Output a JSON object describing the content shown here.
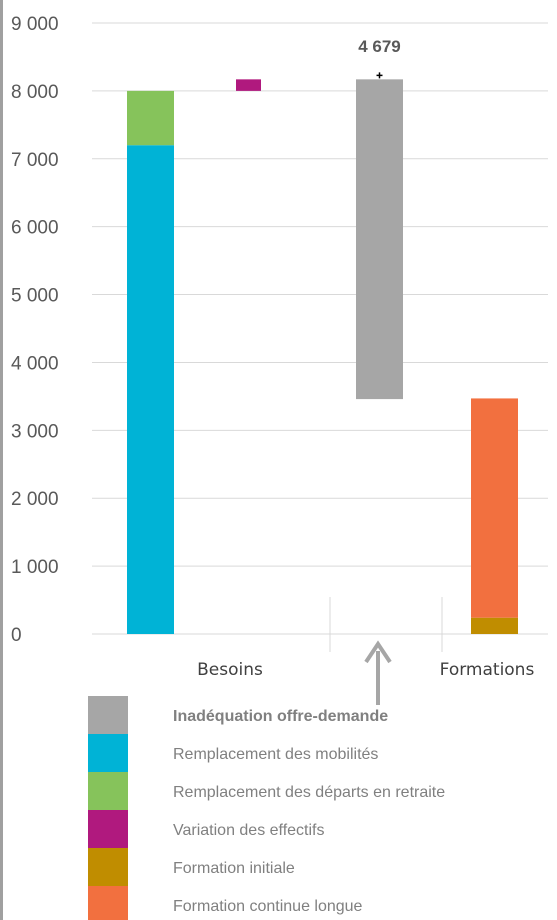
{
  "chart_data": {
    "type": "bar",
    "subtype": "waterfall",
    "categories": [
      "Besoins",
      "Formations"
    ],
    "y_ticks": [
      "0",
      "1 000",
      "2 000",
      "3 000",
      "4 000",
      "5 000",
      "6 000",
      "7 000",
      "8 000",
      "9 000"
    ],
    "ylim": [
      0,
      9000
    ],
    "grid": true,
    "bars": [
      {
        "series": "Remplacement des mobilités",
        "color": "#00B3D6",
        "start": 0,
        "end": 7200
      },
      {
        "series": "Remplacement des départs en retraite",
        "color": "#86C35B",
        "start": 7200,
        "end": 8000
      },
      {
        "series": "Variation des effectifs",
        "color": "#B0197E",
        "start": 8000,
        "end": 8170
      },
      {
        "series": "Inadéquation offre-demande",
        "color": "#A6A6A6",
        "start": 3460,
        "end": 8170
      },
      {
        "series": "Formation initiale",
        "color": "#C08D00",
        "start": 0,
        "end": 240
      },
      {
        "series": "Formation continue longue",
        "color": "#F2703F",
        "start": 240,
        "end": 3470
      }
    ],
    "annotation": {
      "text": "4 679",
      "series": "Inadéquation offre-demande"
    },
    "legend": [
      {
        "label": "Inadéquation offre-demande",
        "color": "#A6A6A6",
        "bold": true
      },
      {
        "label": "Remplacement des mobilités",
        "color": "#00B3D6",
        "bold": false
      },
      {
        "label": "Remplacement des départs en retraite",
        "color": "#86C35B",
        "bold": false
      },
      {
        "label": "Variation des effectifs",
        "color": "#B0197E",
        "bold": false
      },
      {
        "label": "Formation initiale",
        "color": "#C08D00",
        "bold": false
      },
      {
        "label": "Formation continue longue",
        "color": "#F2703F",
        "bold": false
      }
    ],
    "legend_position": "bottom"
  }
}
